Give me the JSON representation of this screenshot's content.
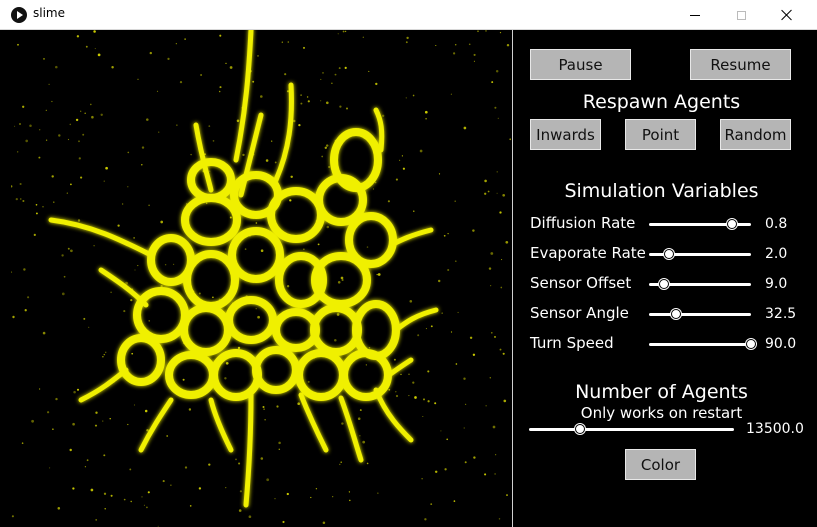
{
  "window": {
    "title": "slime"
  },
  "controls": {
    "pause_label": "Pause",
    "resume_label": "Resume",
    "respawn_heading": "Respawn Agents",
    "respawn_buttons": [
      "Inwards",
      "Point",
      "Random"
    ],
    "variables_heading": "Simulation Variables",
    "sliders": [
      {
        "label": "Diffusion Rate",
        "value": "0.8",
        "fraction": 0.81
      },
      {
        "label": "Evaporate Rate",
        "value": "2.0",
        "fraction": 0.2
      },
      {
        "label": "Sensor Offset",
        "value": "9.0",
        "fraction": 0.15
      },
      {
        "label": "Sensor Angle",
        "value": "32.5",
        "fraction": 0.26
      },
      {
        "label": "Turn Speed",
        "value": "90.0",
        "fraction": 1.0
      }
    ],
    "agents_heading": "Number of Agents",
    "agents_subtitle": "Only works on restart",
    "agents_value": "13500.0",
    "agents_fraction": 0.25,
    "color_label": "Color"
  },
  "colors": {
    "slime": "#f0f000",
    "background": "#000000",
    "button": "#b5b5b5"
  }
}
